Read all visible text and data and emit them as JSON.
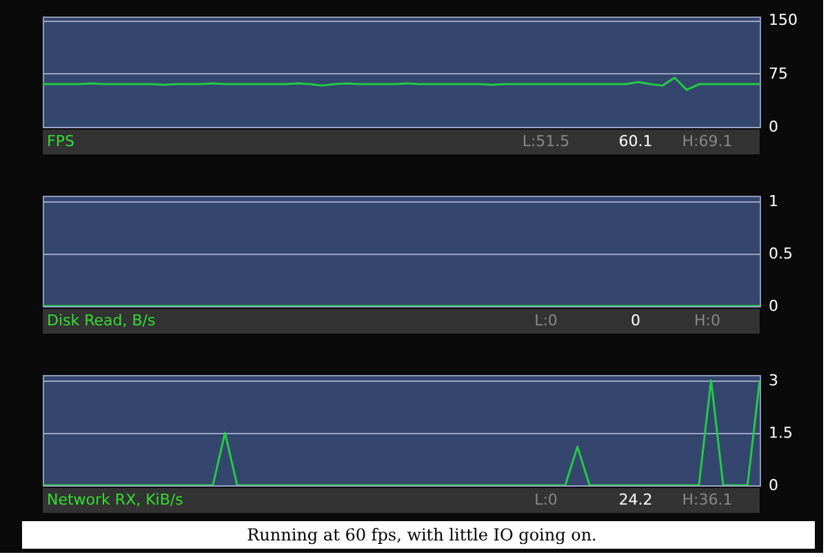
{
  "chart_data": [
    {
      "type": "line",
      "title": "FPS",
      "annotations": [
        "L:51.5",
        "60.1",
        "H:69.1"
      ],
      "categories": [
        null,
        null,
        null,
        null,
        null,
        null,
        null,
        null,
        null,
        null,
        null,
        null,
        null,
        null,
        null,
        null,
        null,
        null,
        null,
        null,
        null,
        null,
        null,
        null,
        null,
        null,
        null,
        null,
        null,
        null,
        null,
        null,
        null,
        null,
        null,
        null,
        null,
        null,
        null,
        null,
        null,
        null,
        null,
        null,
        null,
        null,
        null,
        null,
        null,
        null,
        null,
        null,
        null,
        null,
        null,
        null,
        null,
        null,
        null,
        null
      ],
      "series": [
        {
          "color": "#22cc44",
          "values": [
            60,
            60,
            60,
            60,
            61,
            60,
            60,
            60,
            60,
            60,
            59,
            60,
            60,
            60,
            61,
            60,
            60,
            60,
            60,
            60,
            60,
            61,
            60,
            58,
            60,
            61,
            60,
            60,
            60,
            60,
            61,
            60,
            60,
            60,
            60,
            60,
            60,
            59,
            60,
            60,
            60,
            60,
            60,
            60,
            60,
            60,
            60,
            60,
            60,
            63,
            60,
            58,
            69,
            52,
            60,
            60,
            60,
            60,
            60,
            60
          ]
        }
      ],
      "ylim": [
        0,
        155
      ],
      "yticks": [
        0,
        75,
        150
      ],
      "grid": "y",
      "line_style": "solid",
      "marker": "none"
    },
    {
      "type": "line",
      "title": "Disk Read, B/s",
      "annotations": [
        "L:0",
        "0",
        "H:0"
      ],
      "categories": [
        null,
        null,
        null,
        null,
        null,
        null,
        null,
        null,
        null,
        null,
        null,
        null,
        null,
        null,
        null,
        null,
        null,
        null,
        null,
        null,
        null,
        null,
        null,
        null,
        null,
        null,
        null,
        null,
        null,
        null,
        null,
        null,
        null,
        null,
        null,
        null,
        null,
        null,
        null,
        null,
        null,
        null,
        null,
        null,
        null,
        null,
        null,
        null,
        null,
        null,
        null,
        null,
        null,
        null,
        null,
        null,
        null,
        null,
        null,
        null
      ],
      "series": [
        {
          "color": "#22cc44",
          "values": [
            0,
            0,
            0,
            0,
            0,
            0,
            0,
            0,
            0,
            0,
            0,
            0,
            0,
            0,
            0,
            0,
            0,
            0,
            0,
            0,
            0,
            0,
            0,
            0,
            0,
            0,
            0,
            0,
            0,
            0,
            0,
            0,
            0,
            0,
            0,
            0,
            0,
            0,
            0,
            0,
            0,
            0,
            0,
            0,
            0,
            0,
            0,
            0,
            0,
            0,
            0,
            0,
            0,
            0,
            0,
            0,
            0,
            0,
            0,
            0
          ]
        }
      ],
      "ylim": [
        0,
        1.05
      ],
      "yticks": [
        0,
        0.5,
        1
      ],
      "grid": "y",
      "line_style": "solid",
      "marker": "none"
    },
    {
      "type": "line",
      "title": "Network RX, KiB/s",
      "annotations": [
        "L:0",
        "24.2",
        "H:36.1",
        "Running at 60 fps, with little IO going on."
      ],
      "categories": [
        null,
        null,
        null,
        null,
        null,
        null,
        null,
        null,
        null,
        null,
        null,
        null,
        null,
        null,
        null,
        null,
        null,
        null,
        null,
        null,
        null,
        null,
        null,
        null,
        null,
        null,
        null,
        null,
        null,
        null,
        null,
        null,
        null,
        null,
        null,
        null,
        null,
        null,
        null,
        null,
        null,
        null,
        null,
        null,
        null,
        null,
        null,
        null,
        null,
        null,
        null,
        null,
        null,
        null,
        null,
        null,
        null,
        null,
        null,
        null
      ],
      "series": [
        {
          "color": "#22cc44",
          "values": [
            0,
            0,
            0,
            0,
            0,
            0,
            0,
            0,
            0,
            0,
            0,
            0,
            0,
            0,
            0,
            1.5,
            0,
            0,
            0,
            0,
            0,
            0,
            0,
            0,
            0,
            0,
            0,
            0,
            0,
            0,
            0,
            0,
            0,
            0,
            0,
            0,
            0,
            0,
            0,
            0,
            0,
            0,
            0,
            0,
            1.1,
            0,
            0,
            0,
            0,
            0,
            0,
            0,
            0,
            0,
            0,
            3,
            0,
            0,
            0,
            3
          ]
        }
      ],
      "ylim": [
        0,
        3.15
      ],
      "yticks": [
        0,
        1.5,
        3
      ],
      "grid": "y",
      "line_style": "solid",
      "marker": "none"
    }
  ]
}
